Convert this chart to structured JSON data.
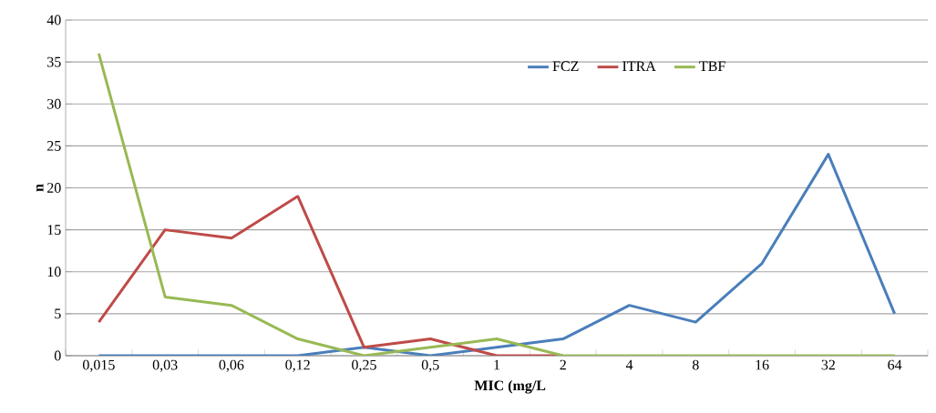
{
  "chart_data": {
    "type": "line",
    "xlabel": "MIC (mg/L",
    "ylabel": "n",
    "categories": [
      "0,015",
      "0,03",
      "0,06",
      "0,12",
      "0,25",
      "0,5",
      "1",
      "2",
      "4",
      "8",
      "16",
      "32",
      "64"
    ],
    "series": [
      {
        "name": "FCZ",
        "color": "#4a7ebb",
        "values": [
          0,
          0,
          0,
          0,
          1,
          0,
          1,
          2,
          6,
          4,
          11,
          24,
          5
        ]
      },
      {
        "name": "ITRA",
        "color": "#be4b48",
        "values": [
          4,
          15,
          14,
          19,
          1,
          2,
          0,
          0,
          null,
          null,
          null,
          null,
          null
        ]
      },
      {
        "name": "TBF",
        "color": "#98b954",
        "values": [
          36,
          7,
          6,
          2,
          0,
          1,
          2,
          0,
          0,
          0,
          0,
          0,
          0
        ]
      }
    ],
    "ylim": [
      0,
      40
    ],
    "yticks": [
      0,
      5,
      10,
      15,
      20,
      25,
      30,
      35,
      40
    ],
    "grid": "y",
    "legend": "top right",
    "marker": "none",
    "line_style": "solid"
  }
}
